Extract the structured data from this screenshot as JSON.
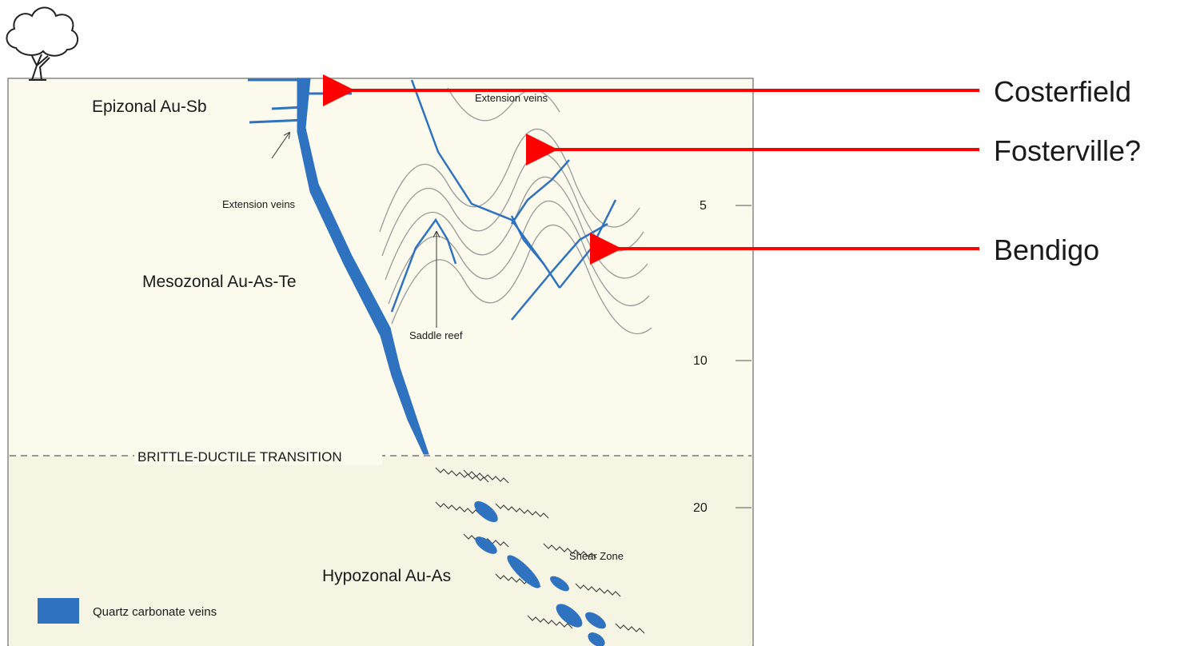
{
  "zones": {
    "epizonal": "Epizonal Au-Sb",
    "mesozonal": "Mesozonal Au-As-Te",
    "hypozonal": "Hypozonal Au-As"
  },
  "annotations": {
    "extension_veins_left": "Extension veins",
    "extension_veins_top": "Extension veins",
    "saddle_reef": "Saddle reef",
    "transition": "BRITTLE-DUCTILE TRANSITION",
    "shear_zone": "Shear Zone"
  },
  "depth_ticks": [
    "5",
    "10",
    "20"
  ],
  "legend": {
    "label": "Quartz carbonate veins"
  },
  "callouts": [
    "Costerfield",
    "Fosterville?",
    "Bendigo"
  ],
  "colors": {
    "panel_bg": "#fbfaec",
    "vein_blue": "#2f73c0",
    "arrow_red": "#ff0000",
    "fold_gray": "#9a9a9a"
  },
  "icon": "tree-icon"
}
